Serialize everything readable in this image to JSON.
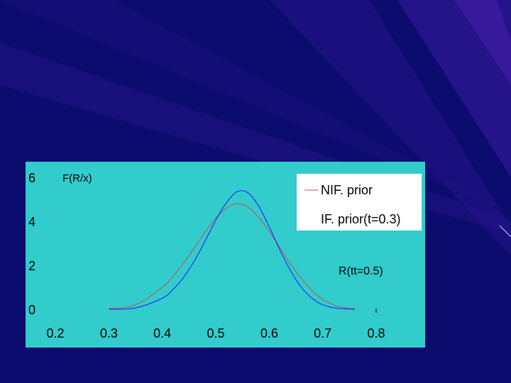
{
  "colors": {
    "background": "#0b0c6e",
    "panel": "#33cccc",
    "nif_prior": "#c0504d",
    "if_prior": "#1a1aff"
  },
  "chart_data": {
    "type": "line",
    "title": "",
    "ylabel": "F(R/x)",
    "xlabel": "",
    "xlim": [
      0.2,
      0.8
    ],
    "ylim": [
      0,
      6
    ],
    "x_ticks": [
      "0.2",
      "0.3",
      "0.4",
      "0.5",
      "0.6",
      "0.7",
      "0.8"
    ],
    "y_ticks": [
      "0",
      "2",
      "4",
      "6"
    ],
    "annotation": "R(tt=0.5)",
    "legend_position": "top-right",
    "series": [
      {
        "name": "NIF. prior",
        "color": "#c0504d",
        "x": [
          0.3,
          0.35,
          0.4,
          0.42,
          0.44,
          0.46,
          0.48,
          0.5,
          0.52,
          0.54,
          0.56,
          0.58,
          0.6,
          0.62,
          0.64,
          0.66,
          0.68,
          0.7,
          0.72,
          0.74,
          0.76
        ],
        "y": [
          0.02,
          0.2,
          1.0,
          1.5,
          2.1,
          2.8,
          3.5,
          4.15,
          4.6,
          4.8,
          4.65,
          4.2,
          3.55,
          2.8,
          2.05,
          1.4,
          0.85,
          0.45,
          0.2,
          0.07,
          0.02
        ]
      },
      {
        "name": "IF. prior(t=0.3)",
        "color": "#1a1aff",
        "x": [
          0.3,
          0.35,
          0.4,
          0.42,
          0.44,
          0.46,
          0.48,
          0.5,
          0.52,
          0.54,
          0.56,
          0.58,
          0.6,
          0.62,
          0.64,
          0.66,
          0.68,
          0.7,
          0.72,
          0.74,
          0.76
        ],
        "y": [
          0.0,
          0.06,
          0.5,
          0.9,
          1.45,
          2.2,
          3.1,
          4.05,
          4.85,
          5.35,
          5.3,
          4.7,
          3.75,
          2.7,
          1.75,
          1.0,
          0.5,
          0.2,
          0.07,
          0.02,
          0.0
        ]
      }
    ]
  }
}
